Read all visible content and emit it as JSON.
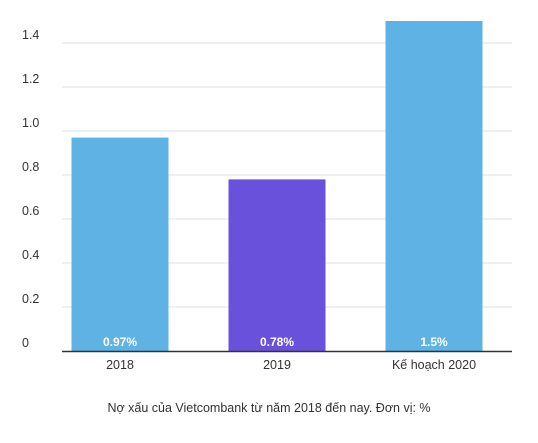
{
  "chart_data": {
    "type": "bar",
    "categories": [
      "2018",
      "2019",
      "Kế hoạch 2020"
    ],
    "values": [
      0.97,
      0.78,
      1.5
    ],
    "data_labels": [
      "0.97%",
      "0.78%",
      "1.5%"
    ],
    "bar_colors": [
      "#5eb3e4",
      "#6a51dc",
      "#5eb3e4"
    ],
    "y_ticks": [
      "0",
      "0.2",
      "0.4",
      "0.6",
      "0.8",
      "1.0",
      "1.2",
      "1.4"
    ],
    "ylim": [
      0,
      1.5
    ],
    "grid": true,
    "caption": "Nợ xấu của Vietcombank từ năm 2018 đến nay. Đơn vị: %"
  }
}
